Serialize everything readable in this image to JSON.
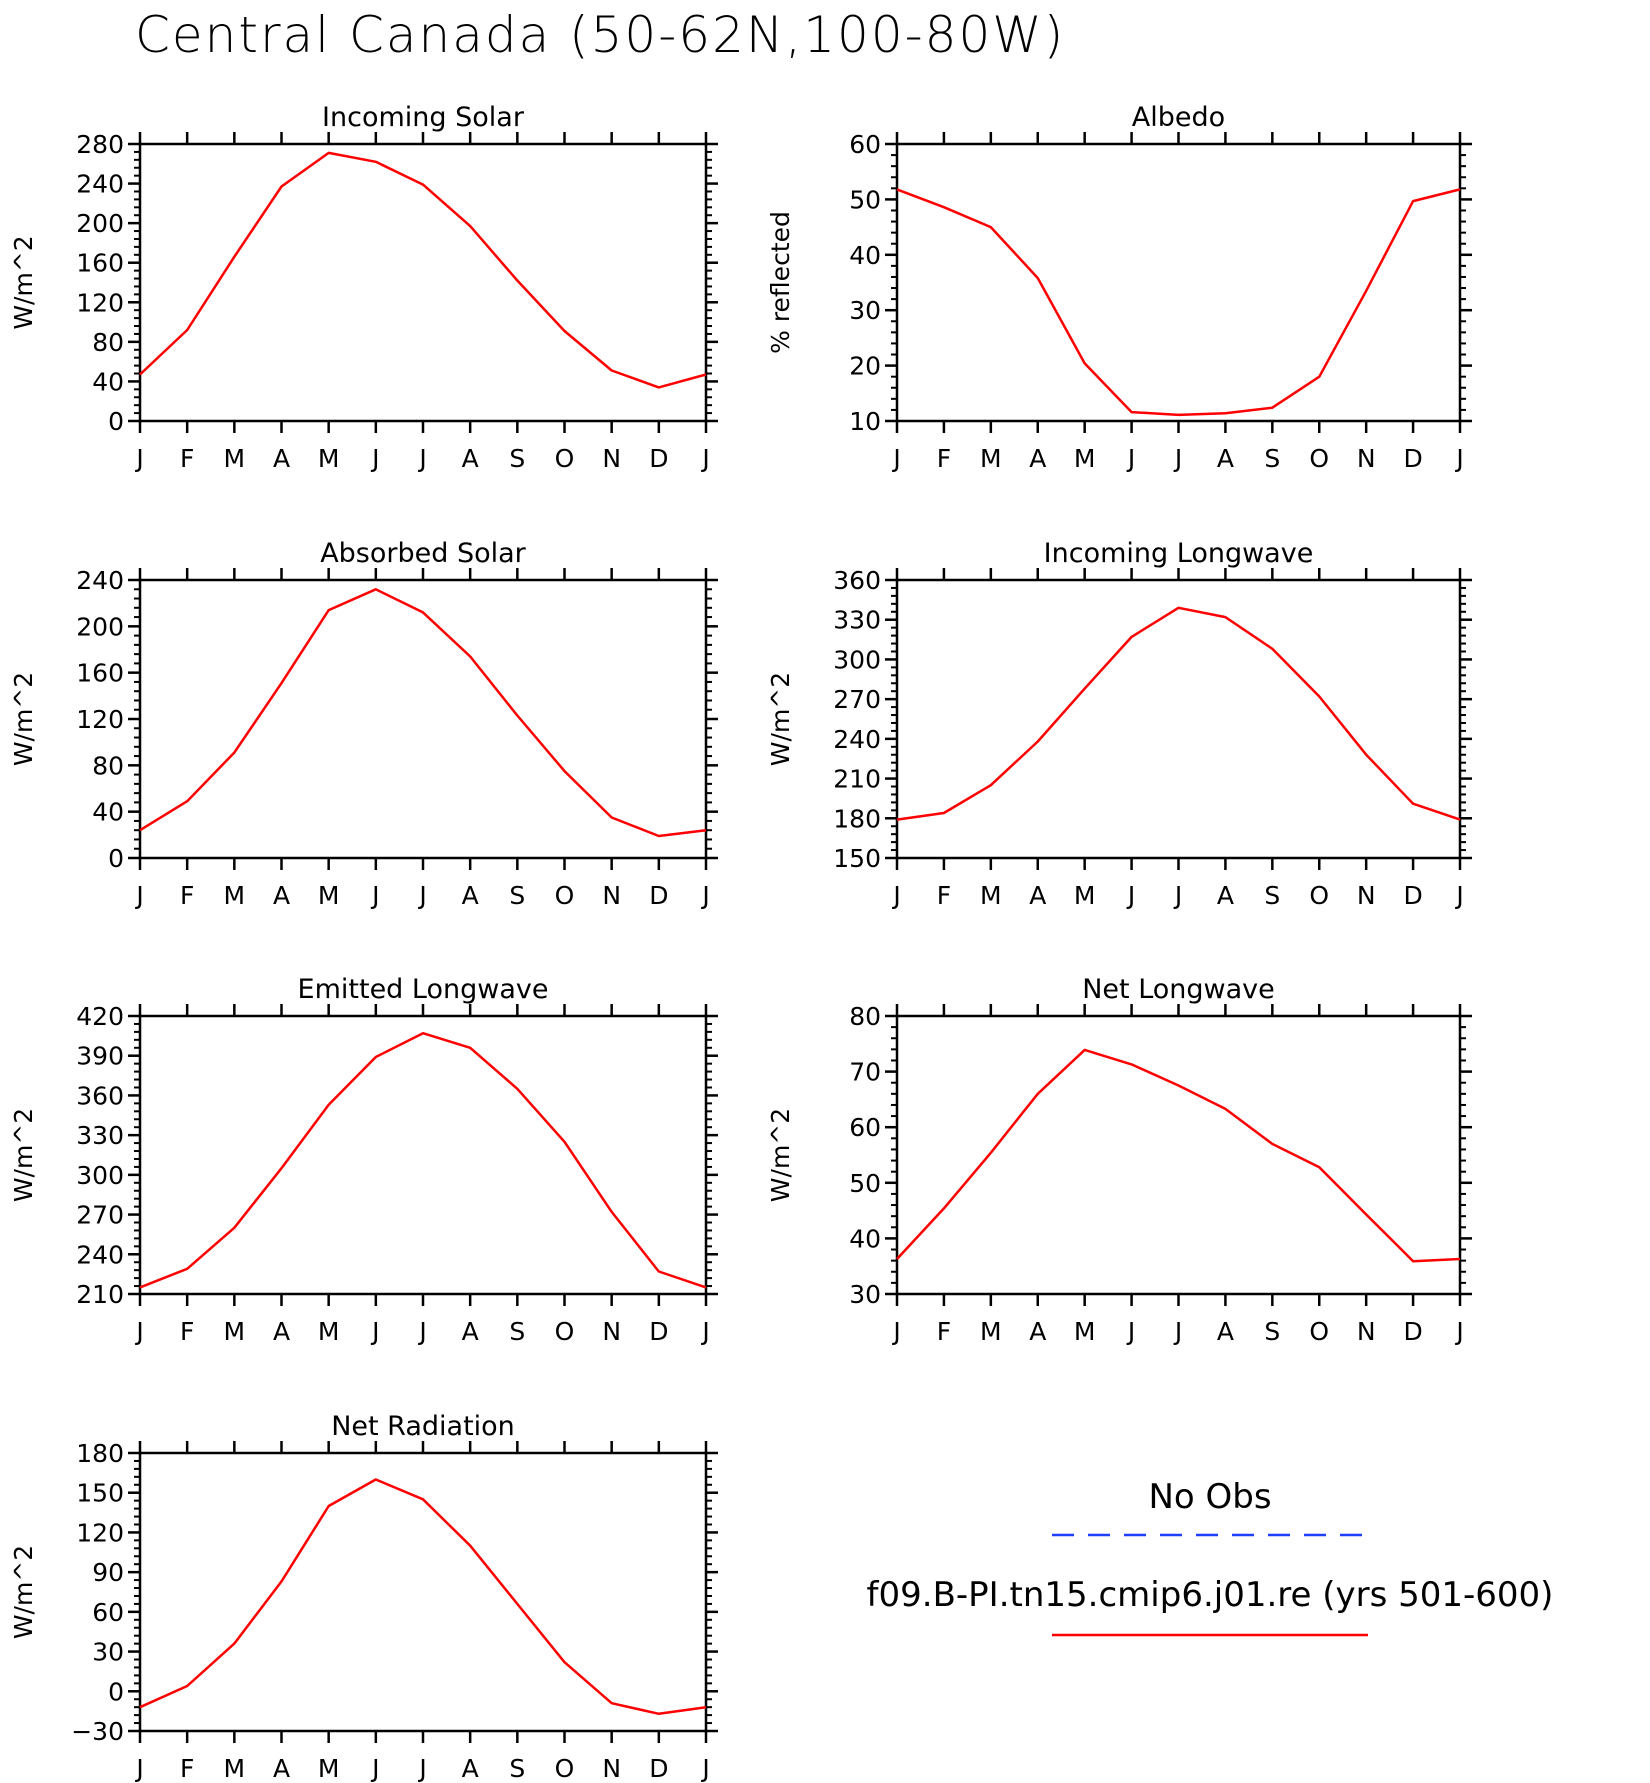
{
  "figure": {
    "title": "Central Canada (50-62N,100-80W)"
  },
  "legend": {
    "obs_label": "No Obs",
    "model_label": "f09.B-PI.tn15.cmip6.j01.re (yrs 501-600)",
    "obs_color": "#1f3fff",
    "model_color": "#ff0000"
  },
  "chart_data": [
    {
      "type": "line",
      "title": "Incoming Solar",
      "ylabel": "W/m^2",
      "categories": [
        "J",
        "F",
        "M",
        "A",
        "M",
        "J",
        "J",
        "A",
        "S",
        "O",
        "N",
        "D",
        "J"
      ],
      "ylim": [
        0,
        280
      ],
      "yticks": [
        0,
        40,
        80,
        120,
        160,
        200,
        240,
        280
      ],
      "series": [
        {
          "name": "f09.B-PI.tn15.cmip6.j01.re (yrs 501-600)",
          "color": "#ff0000",
          "values": [
            47,
            92,
            166,
            237,
            271,
            262,
            239,
            197,
            142,
            91,
            51,
            34,
            47
          ]
        }
      ]
    },
    {
      "type": "line",
      "title": "Albedo",
      "ylabel": "% reflected",
      "categories": [
        "J",
        "F",
        "M",
        "A",
        "M",
        "J",
        "J",
        "A",
        "S",
        "O",
        "N",
        "D",
        "J"
      ],
      "ylim": [
        10,
        60
      ],
      "yticks": [
        10,
        20,
        30,
        40,
        50,
        60
      ],
      "series": [
        {
          "name": "f09.B-PI.tn15.cmip6.j01.re (yrs 501-600)",
          "color": "#ff0000",
          "values": [
            51.8,
            48.6,
            45.0,
            35.8,
            20.4,
            11.6,
            11.1,
            11.4,
            12.4,
            18.0,
            33.5,
            49.7,
            51.8
          ]
        }
      ]
    },
    {
      "type": "line",
      "title": "Absorbed Solar",
      "ylabel": "W/m^2",
      "categories": [
        "J",
        "F",
        "M",
        "A",
        "M",
        "J",
        "J",
        "A",
        "S",
        "O",
        "N",
        "D",
        "J"
      ],
      "ylim": [
        0,
        240
      ],
      "yticks": [
        0,
        40,
        80,
        120,
        160,
        200,
        240
      ],
      "series": [
        {
          "name": "f09.B-PI.tn15.cmip6.j01.re (yrs 501-600)",
          "color": "#ff0000",
          "values": [
            24,
            49,
            91,
            151,
            214,
            232,
            212,
            174,
            123,
            75,
            35,
            19,
            24
          ]
        }
      ]
    },
    {
      "type": "line",
      "title": "Incoming Longwave",
      "ylabel": "W/m^2",
      "categories": [
        "J",
        "F",
        "M",
        "A",
        "M",
        "J",
        "J",
        "A",
        "S",
        "O",
        "N",
        "D",
        "J"
      ],
      "ylim": [
        150,
        360
      ],
      "yticks": [
        150,
        180,
        210,
        240,
        270,
        300,
        330,
        360
      ],
      "series": [
        {
          "name": "f09.B-PI.tn15.cmip6.j01.re (yrs 501-600)",
          "color": "#ff0000",
          "values": [
            179,
            184,
            205,
            238,
            278,
            317,
            339,
            332,
            308,
            272,
            228,
            191,
            179
          ]
        }
      ]
    },
    {
      "type": "line",
      "title": "Emitted Longwave",
      "ylabel": "W/m^2",
      "categories": [
        "J",
        "F",
        "M",
        "A",
        "M",
        "J",
        "J",
        "A",
        "S",
        "O",
        "N",
        "D",
        "J"
      ],
      "ylim": [
        210,
        420
      ],
      "yticks": [
        210,
        240,
        270,
        300,
        330,
        360,
        390,
        420
      ],
      "series": [
        {
          "name": "f09.B-PI.tn15.cmip6.j01.re (yrs 501-600)",
          "color": "#ff0000",
          "values": [
            215,
            229,
            260,
            305,
            353,
            389,
            407,
            396,
            365,
            325,
            272,
            227,
            215
          ]
        }
      ]
    },
    {
      "type": "line",
      "title": "Net Longwave",
      "ylabel": "W/m^2",
      "categories": [
        "J",
        "F",
        "M",
        "A",
        "M",
        "J",
        "J",
        "A",
        "S",
        "O",
        "N",
        "D",
        "J"
      ],
      "ylim": [
        30,
        80
      ],
      "yticks": [
        30,
        40,
        50,
        60,
        70,
        80
      ],
      "series": [
        {
          "name": "f09.B-PI.tn15.cmip6.j01.re (yrs 501-600)",
          "color": "#ff0000",
          "values": [
            36.3,
            45.4,
            55.4,
            66.0,
            73.9,
            71.3,
            67.5,
            63.3,
            57.0,
            52.8,
            44.3,
            35.9,
            36.3
          ]
        }
      ]
    },
    {
      "type": "line",
      "title": "Net Radiation",
      "ylabel": "W/m^2",
      "categories": [
        "J",
        "F",
        "M",
        "A",
        "M",
        "J",
        "J",
        "A",
        "S",
        "O",
        "N",
        "D",
        "J"
      ],
      "ylim": [
        -30,
        180
      ],
      "yticks": [
        -30,
        0,
        30,
        60,
        90,
        120,
        150,
        180
      ],
      "series": [
        {
          "name": "f09.B-PI.tn15.cmip6.j01.re (yrs 501-600)",
          "color": "#ff0000",
          "values": [
            -12,
            4,
            36,
            83,
            140,
            160,
            145,
            110,
            66,
            22,
            -9,
            -17,
            -12
          ]
        }
      ]
    }
  ]
}
